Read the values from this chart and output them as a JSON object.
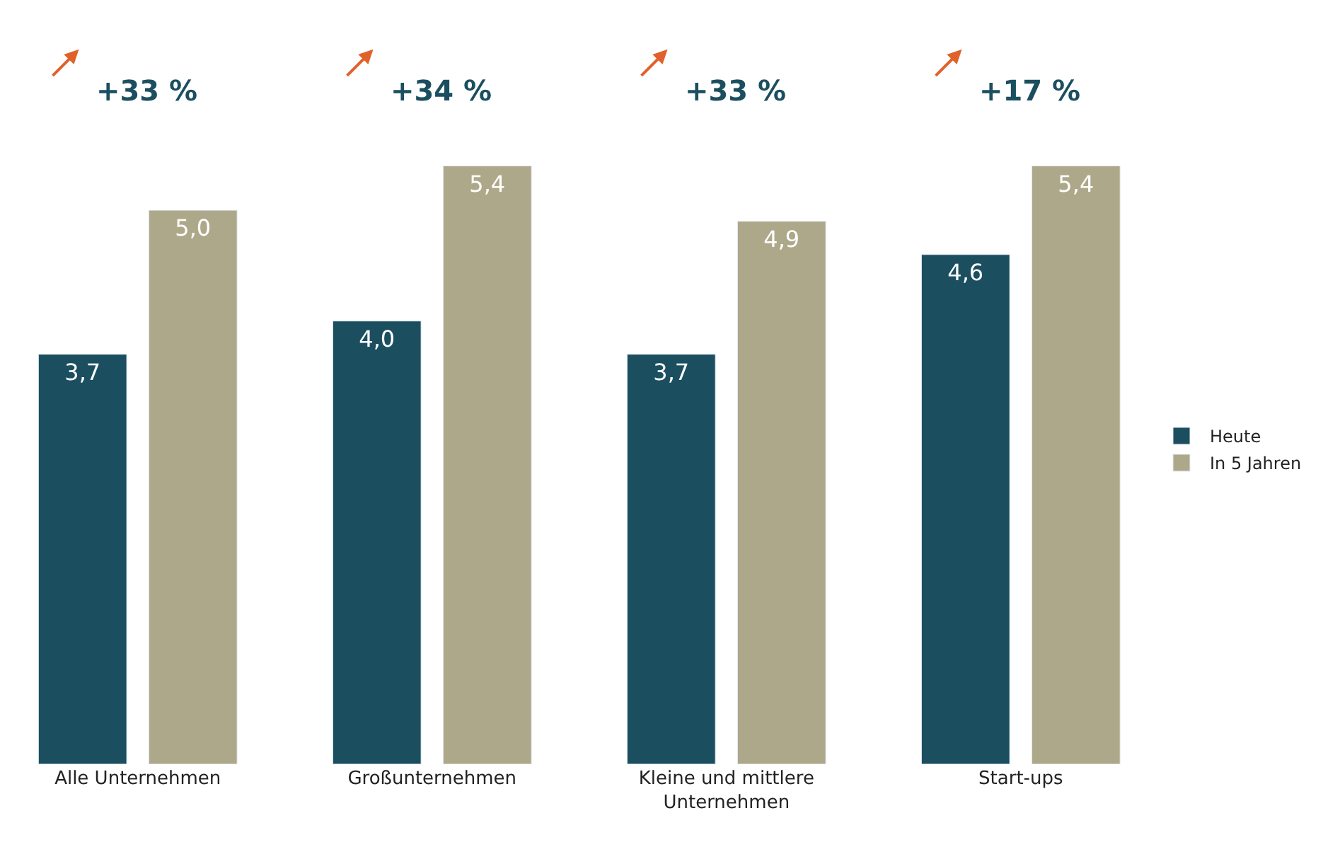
{
  "chart_data": {
    "type": "bar",
    "categories": [
      "Alle Unternehmen",
      "Großunternehmen",
      "Kleine und mittlere\nUnternehmen",
      "Start-ups"
    ],
    "series": [
      {
        "name": "Heute",
        "color": "#1b4f5f",
        "values": [
          3.7,
          4.0,
          3.7,
          4.6
        ],
        "value_labels": [
          "3,7",
          "4,0",
          "3,7",
          "4,6"
        ]
      },
      {
        "name": "In 5 Jahren",
        "color": "#aea88a",
        "values": [
          5.0,
          5.4,
          4.9,
          5.4
        ],
        "value_labels": [
          "5,0",
          "5,4",
          "4,9",
          "5,4"
        ]
      }
    ],
    "annotations": [
      "+33 %",
      "+34 %",
      "+33 %",
      "+17 %"
    ],
    "legend": "right",
    "tick_labels": "x"
  }
}
